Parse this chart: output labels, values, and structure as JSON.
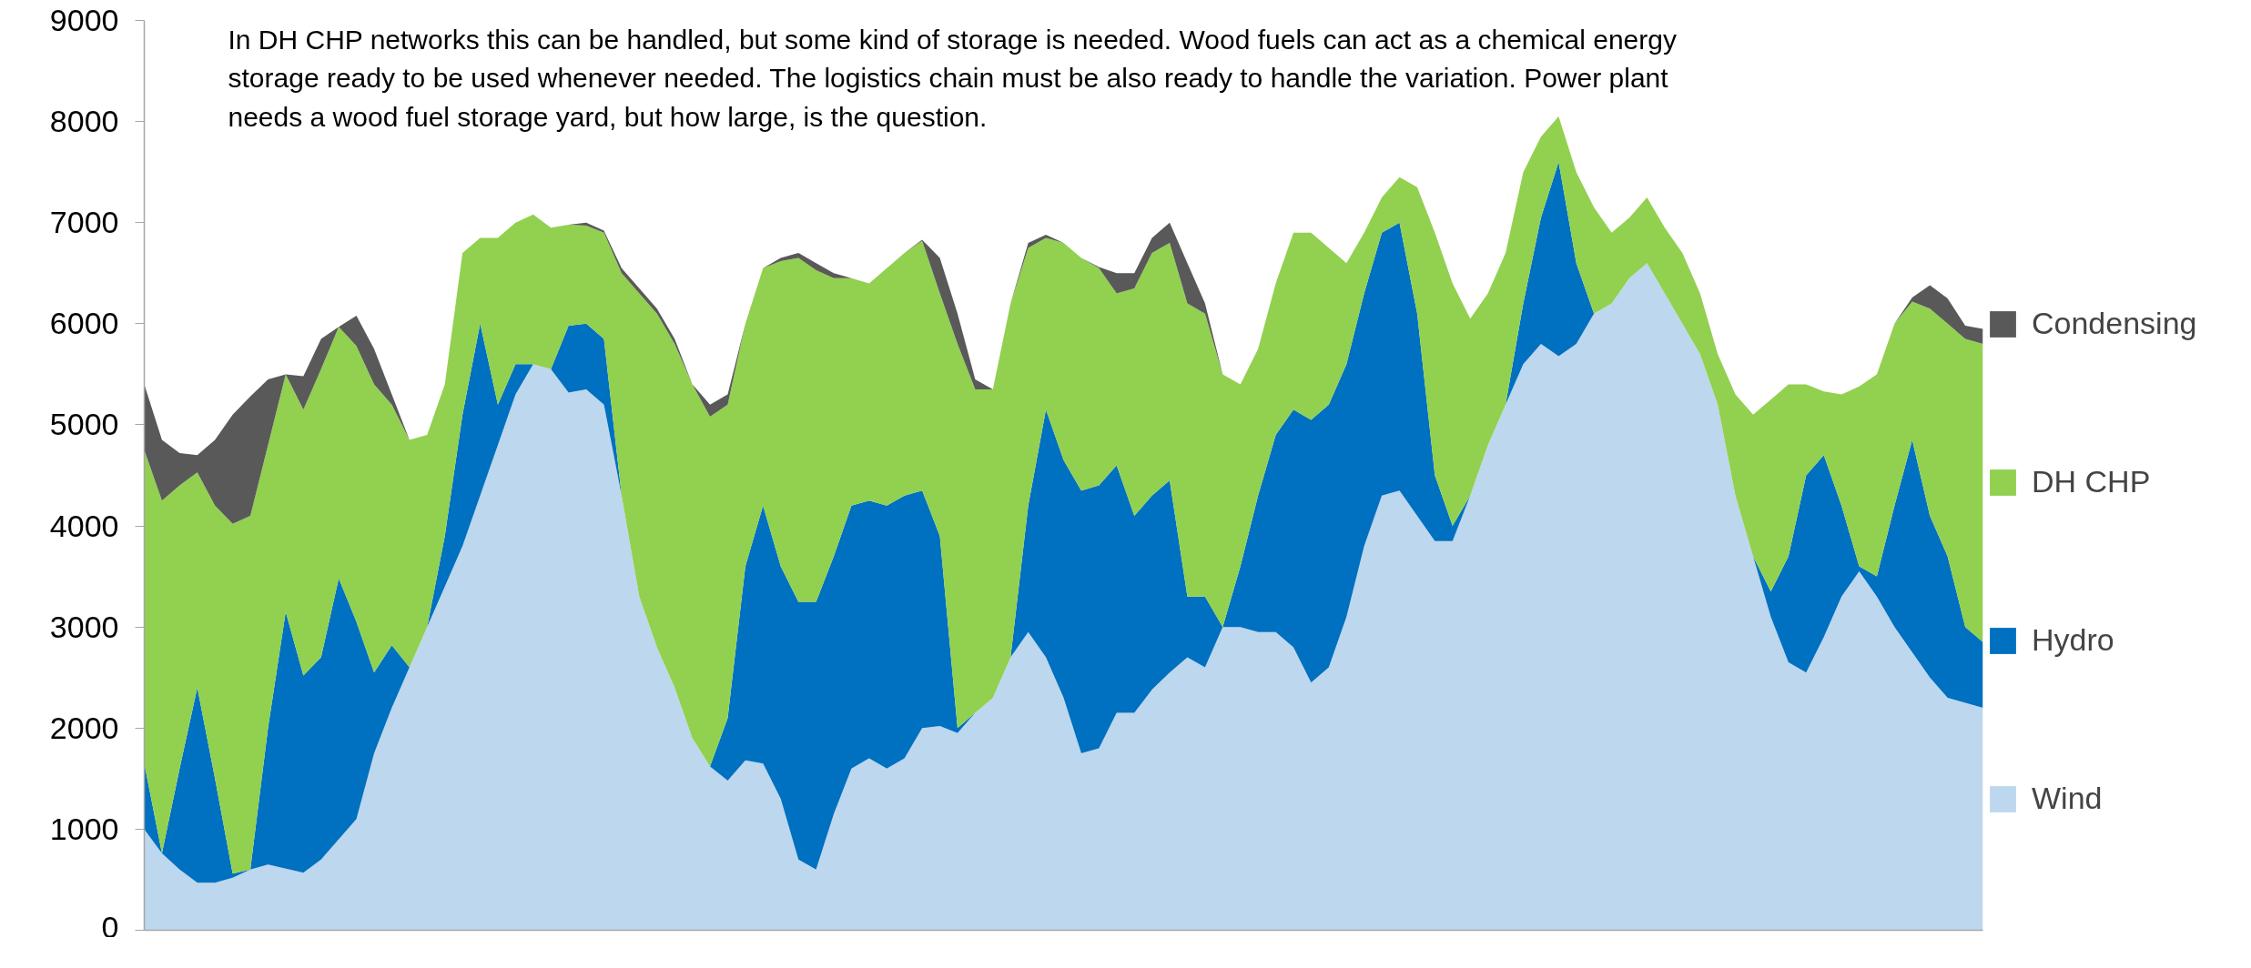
{
  "chart_data": {
    "type": "area",
    "stacked": true,
    "annotations": [
      "In DH CHP networks this can be handled, but some kind of storage is needed. Wood fuels can act as a chemical energy\nstorage ready to be used whenever needed. The logistics chain must be also ready to handle the variation. Power plant\nneeds a wood fuel storage yard, but how large, is the question."
    ],
    "categories": [
      null,
      null,
      null,
      null,
      null,
      null,
      null,
      null,
      null,
      null,
      null,
      null,
      null,
      null,
      null,
      null,
      null,
      null,
      null,
      null,
      null,
      null,
      null,
      null,
      null,
      null,
      null,
      null,
      null,
      null,
      null,
      null,
      null,
      null,
      null,
      null,
      null,
      null,
      null,
      null,
      null,
      null,
      null,
      null,
      null,
      null,
      null,
      null,
      null,
      null,
      null,
      null,
      null,
      null,
      null,
      null,
      null,
      null,
      null,
      null,
      null,
      null,
      null,
      null,
      null,
      null,
      null,
      null,
      null,
      null,
      null,
      null,
      null,
      null,
      null,
      null,
      null,
      null,
      null,
      null,
      null,
      null,
      null,
      null,
      null,
      null,
      null,
      null,
      null,
      null,
      null,
      null,
      null,
      null,
      null,
      null,
      null,
      null,
      null,
      null,
      null,
      null,
      null,
      null,
      null
    ],
    "series": [
      {
        "name": "Wind",
        "color": "#bdd7ee",
        "values": [
          1000,
          760,
          600,
          470,
          470,
          520,
          600,
          650,
          610,
          570,
          700,
          900,
          1100,
          1750,
          2200,
          2600,
          3000,
          3400,
          3800,
          4300,
          4800,
          5300,
          5600,
          5550,
          5320,
          5350,
          5200,
          4300,
          3300,
          2800,
          2400,
          1900,
          1620,
          1480,
          1680,
          1650,
          1300,
          700,
          600,
          1150,
          1600,
          1700,
          1600,
          1700,
          2000,
          2020,
          1950,
          2150,
          2300,
          2700,
          2950,
          2700,
          2300,
          1750,
          1800,
          2150,
          2150,
          2380,
          2550,
          2700,
          2600,
          3000,
          3000,
          2950,
          2950,
          2800,
          2450,
          2600,
          3100,
          3800,
          4300,
          4350,
          4100,
          3850,
          3850,
          4300,
          4800,
          5200,
          5600,
          5800,
          5680,
          5800,
          6100,
          6200,
          6450,
          6600,
          6300,
          6000,
          5700,
          5200,
          4300,
          3700,
          3100,
          2650,
          2550,
          2900,
          3300,
          3550,
          3300,
          3000,
          2750,
          2500,
          2300,
          2250,
          2200
        ]
      },
      {
        "name": "Hydro",
        "color": "#0070c0",
        "values": [
          650,
          0,
          1000,
          1930,
          1030,
          40,
          0,
          1350,
          2540,
          1950,
          2000,
          2580,
          1950,
          800,
          620,
          0,
          0,
          500,
          1300,
          1700,
          400,
          300,
          0,
          0,
          660,
          650,
          650,
          0,
          0,
          0,
          0,
          0,
          0,
          620,
          1920,
          2550,
          2300,
          2550,
          2650,
          2550,
          2600,
          2550,
          2600,
          2600,
          2350,
          1880,
          50,
          0,
          0,
          0,
          1250,
          2450,
          2350,
          2600,
          2600,
          2450,
          1950,
          1920,
          1900,
          600,
          700,
          0,
          600,
          1350,
          1950,
          2350,
          2600,
          2600,
          2500,
          2500,
          2600,
          2650,
          2000,
          650,
          150,
          0,
          0,
          0,
          600,
          1250,
          1920,
          800,
          0,
          0,
          0,
          0,
          0,
          0,
          0,
          0,
          0,
          0,
          250,
          1050,
          1950,
          1800,
          900,
          50,
          200,
          1200,
          2100,
          1600,
          1400,
          750,
          650
        ]
      },
      {
        "name": "DH CHP",
        "color": "#92d050",
        "values": [
          3100,
          3490,
          2800,
          2130,
          2700,
          3460,
          3500,
          2800,
          2350,
          2630,
          2850,
          2490,
          2730,
          2850,
          2380,
          2250,
          1900,
          1500,
          1600,
          850,
          1650,
          1400,
          1480,
          1400,
          1000,
          970,
          1050,
          2200,
          3000,
          3300,
          3400,
          3500,
          3460,
          3100,
          2400,
          2350,
          3020,
          3400,
          3280,
          2750,
          2250,
          2150,
          2350,
          2400,
          2470,
          2400,
          3800,
          3200,
          3050,
          3500,
          2550,
          1700,
          2150,
          2300,
          2150,
          1700,
          2250,
          2400,
          2350,
          2900,
          2800,
          2500,
          1800,
          1450,
          1500,
          1750,
          1850,
          1550,
          1000,
          600,
          350,
          450,
          1250,
          2400,
          2400,
          1750,
          1500,
          1500,
          1300,
          800,
          450,
          900,
          1050,
          700,
          600,
          650,
          650,
          700,
          600,
          500,
          1000,
          1400,
          1900,
          1700,
          900,
          630,
          1100,
          1780,
          2000,
          1800,
          1370,
          2050,
          2300,
          2850,
          2950
        ]
      },
      {
        "name": "Condensing",
        "color": "#595959",
        "values": [
          650,
          600,
          320,
          170,
          650,
          1080,
          1180,
          650,
          0,
          330,
          300,
          0,
          300,
          350,
          100,
          0,
          0,
          0,
          0,
          0,
          0,
          0,
          0,
          0,
          0,
          30,
          20,
          50,
          50,
          50,
          50,
          0,
          120,
          100,
          0,
          0,
          30,
          50,
          70,
          50,
          0,
          0,
          0,
          0,
          10,
          350,
          300,
          100,
          0,
          0,
          50,
          30,
          0,
          0,
          10,
          200,
          150,
          150,
          200,
          400,
          100,
          0,
          0,
          0,
          0,
          0,
          0,
          0,
          0,
          0,
          0,
          0,
          0,
          0,
          0,
          0,
          0,
          0,
          0,
          0,
          0,
          0,
          0,
          0,
          0,
          0,
          0,
          0,
          0,
          0,
          0,
          0,
          0,
          0,
          0,
          0,
          0,
          0,
          0,
          0,
          40,
          230,
          250,
          130,
          150
        ]
      }
    ],
    "ylim": [
      0,
      9000
    ],
    "yticks": [
      0,
      1000,
      2000,
      3000,
      4000,
      5000,
      6000,
      7000,
      8000,
      9000
    ],
    "tick_labels": "y",
    "grid": false,
    "legend": "right"
  }
}
